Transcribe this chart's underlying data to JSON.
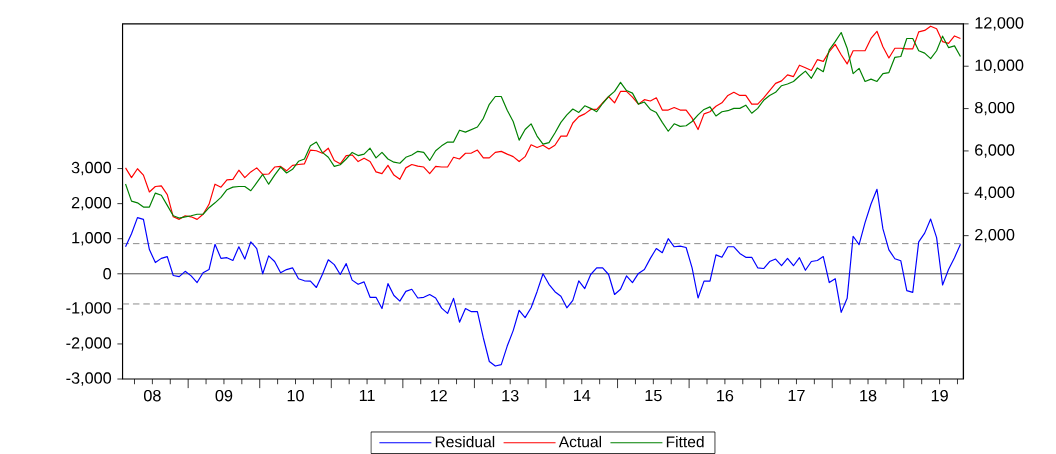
{
  "chart_data": {
    "type": "line",
    "x": [
      "2008-02",
      "2008-03",
      "2008-04",
      "2008-05",
      "2008-06",
      "2008-07",
      "2008-08",
      "2008-09",
      "2008-10",
      "2008-11",
      "2008-12",
      "2009-01",
      "2009-02",
      "2009-03",
      "2009-04",
      "2009-05",
      "2009-06",
      "2009-07",
      "2009-08",
      "2009-09",
      "2009-10",
      "2009-11",
      "2009-12",
      "2010-01",
      "2010-02",
      "2010-03",
      "2010-04",
      "2010-05",
      "2010-06",
      "2010-07",
      "2010-08",
      "2010-09",
      "2010-10",
      "2010-11",
      "2010-12",
      "2011-01",
      "2011-02",
      "2011-03",
      "2011-04",
      "2011-05",
      "2011-06",
      "2011-07",
      "2011-08",
      "2011-09",
      "2011-10",
      "2011-11",
      "2011-12",
      "2012-01",
      "2012-02",
      "2012-03",
      "2012-04",
      "2012-05",
      "2012-06",
      "2012-07",
      "2012-08",
      "2012-09",
      "2012-10",
      "2012-11",
      "2012-12",
      "2013-01",
      "2013-02",
      "2013-03",
      "2013-04",
      "2013-05",
      "2013-06",
      "2013-07",
      "2013-08",
      "2013-09",
      "2013-10",
      "2013-11",
      "2013-12",
      "2014-01",
      "2014-02",
      "2014-03",
      "2014-04",
      "2014-05",
      "2014-06",
      "2014-07",
      "2014-08",
      "2014-09",
      "2014-10",
      "2014-11",
      "2014-12",
      "2015-01",
      "2015-02",
      "2015-03",
      "2015-04",
      "2015-05",
      "2015-06",
      "2015-07",
      "2015-08",
      "2015-09",
      "2015-10",
      "2015-11",
      "2015-12",
      "2016-01",
      "2016-02",
      "2016-03",
      "2016-04",
      "2016-05",
      "2016-06",
      "2016-07",
      "2016-08",
      "2016-09",
      "2016-10",
      "2016-11",
      "2016-12",
      "2017-01",
      "2017-02",
      "2017-03",
      "2017-04",
      "2017-05",
      "2017-06",
      "2017-07",
      "2017-08",
      "2017-09",
      "2017-10",
      "2017-11",
      "2017-12",
      "2018-01",
      "2018-02",
      "2018-03",
      "2018-04",
      "2018-05",
      "2018-06",
      "2018-07",
      "2018-08",
      "2018-09",
      "2018-10",
      "2018-11",
      "2018-12",
      "2019-01",
      "2019-02",
      "2019-03",
      "2019-04",
      "2019-05",
      "2019-06",
      "2019-07",
      "2019-08",
      "2019-09",
      "2019-10"
    ],
    "series": [
      {
        "name": "Residual",
        "color": "#0000ff",
        "values": [
          770,
          1140,
          1600,
          1550,
          690,
          320,
          440,
          490,
          -50,
          -80,
          70,
          -60,
          -250,
          30,
          120,
          840,
          440,
          460,
          380,
          770,
          420,
          910,
          720,
          0,
          510,
          350,
          30,
          120,
          170,
          -140,
          -200,
          -210,
          -390,
          -20,
          400,
          260,
          -20,
          290,
          -180,
          -300,
          -230,
          -670,
          -670,
          -990,
          -280,
          -620,
          -780,
          -500,
          -440,
          -690,
          -670,
          -590,
          -690,
          -980,
          -1130,
          -700,
          -1380,
          -990,
          -1080,
          -1080,
          -1830,
          -2500,
          -2630,
          -2590,
          -2060,
          -1620,
          -1040,
          -1250,
          -970,
          -510,
          0,
          -300,
          -510,
          -640,
          -970,
          -760,
          -200,
          -420,
          -20,
          170,
          170,
          -20,
          -590,
          -440,
          -60,
          -250,
          10,
          120,
          440,
          720,
          600,
          1000,
          770,
          790,
          750,
          170,
          -690,
          -210,
          -210,
          540,
          470,
          770,
          770,
          580,
          470,
          470,
          170,
          150,
          350,
          420,
          230,
          440,
          230,
          460,
          100,
          350,
          380,
          490,
          -250,
          -140,
          -1100,
          -700,
          1070,
          830,
          1460,
          1990,
          2410,
          1280,
          680,
          430,
          370,
          -480,
          -530,
          910,
          1160,
          1560,
          1030,
          -320,
          120,
          460,
          840
        ]
      },
      {
        "name": "Actual",
        "color": "#ff0000",
        "axis": "y2",
        "values": [
          5200,
          4740,
          5160,
          4860,
          4060,
          4320,
          4350,
          3940,
          2890,
          2770,
          2940,
          2890,
          2770,
          3010,
          3480,
          4430,
          4290,
          4630,
          4660,
          5090,
          4740,
          5010,
          5200,
          4890,
          4910,
          5240,
          5270,
          5060,
          5320,
          5360,
          5390,
          6040,
          6010,
          5890,
          6130,
          5550,
          5390,
          5780,
          5810,
          5500,
          5660,
          5500,
          5010,
          4930,
          5320,
          4860,
          4660,
          5200,
          5360,
          5280,
          5240,
          4930,
          5270,
          5240,
          5240,
          5700,
          5620,
          5890,
          5900,
          6040,
          5670,
          5670,
          5930,
          5980,
          5850,
          5730,
          5500,
          5730,
          6290,
          6160,
          6270,
          6090,
          6270,
          6700,
          6700,
          7320,
          7620,
          7750,
          7960,
          7960,
          8270,
          8570,
          8270,
          8810,
          8810,
          8540,
          8210,
          8420,
          8360,
          8510,
          7930,
          7930,
          8050,
          7930,
          7930,
          7550,
          7010,
          7750,
          7850,
          8110,
          8270,
          8620,
          8770,
          8620,
          8620,
          8210,
          8210,
          8510,
          8850,
          9190,
          9310,
          9590,
          9510,
          10050,
          9930,
          9800,
          10310,
          10230,
          10690,
          11030,
          10540,
          10110,
          10730,
          10730,
          10730,
          11310,
          11650,
          10920,
          10390,
          10850,
          10850,
          10820,
          10820,
          11620,
          11690,
          11890,
          11770,
          11160,
          11080,
          11430,
          11310
        ]
      },
      {
        "name": "Fitted",
        "color": "#008000",
        "axis": "y2",
        "values": [
          4440,
          3630,
          3550,
          3350,
          3350,
          4010,
          3910,
          3430,
          2940,
          2830,
          2890,
          2940,
          3010,
          3010,
          3320,
          3550,
          3810,
          4170,
          4290,
          4320,
          4320,
          4120,
          4500,
          4890,
          4430,
          4860,
          5240,
          4960,
          5130,
          5510,
          5620,
          6240,
          6420,
          5930,
          5700,
          5270,
          5350,
          5620,
          5930,
          5780,
          5850,
          6130,
          5670,
          5930,
          5620,
          5470,
          5420,
          5700,
          5810,
          5980,
          5930,
          5550,
          6010,
          6240,
          6420,
          6420,
          6980,
          6890,
          7010,
          7130,
          7540,
          8200,
          8570,
          8570,
          7920,
          7390,
          6510,
          7010,
          7280,
          6700,
          6320,
          6390,
          6850,
          7350,
          7700,
          7980,
          7820,
          8130,
          8010,
          7850,
          8240,
          8570,
          8810,
          9240,
          8850,
          8730,
          8210,
          8310,
          7960,
          7810,
          7350,
          6930,
          7280,
          7160,
          7190,
          7390,
          7700,
          7960,
          8080,
          7650,
          7850,
          7900,
          8010,
          8010,
          8160,
          7780,
          8010,
          8390,
          8620,
          8770,
          9080,
          9160,
          9280,
          9540,
          9770,
          9430,
          9920,
          9740,
          10770,
          11160,
          11590,
          10850,
          9650,
          9900,
          9280,
          9390,
          9280,
          9650,
          9700,
          10420,
          10460,
          11310,
          11310,
          10730,
          10620,
          10360,
          10730,
          11420,
          10880,
          10960,
          10460
        ]
      }
    ],
    "xlim": [
      "2008-02-01",
      "2019-11-01"
    ],
    "xticks": [
      {
        "value": "2008-04-01",
        "label": null
      },
      {
        "value": "2008-07-01",
        "label": "08"
      },
      {
        "value": "2008-10-01",
        "label": null
      },
      {
        "value": "2009-01-01",
        "label": null
      },
      {
        "value": "2009-04-01",
        "label": null
      },
      {
        "value": "2009-07-01",
        "label": "09"
      },
      {
        "value": "2009-10-01",
        "label": null
      },
      {
        "value": "2010-01-01",
        "label": null
      },
      {
        "value": "2010-04-01",
        "label": null
      },
      {
        "value": "2010-07-01",
        "label": "10"
      },
      {
        "value": "2010-10-01",
        "label": null
      },
      {
        "value": "2011-01-01",
        "label": null
      },
      {
        "value": "2011-04-01",
        "label": null
      },
      {
        "value": "2011-07-01",
        "label": "11"
      },
      {
        "value": "2011-10-01",
        "label": null
      },
      {
        "value": "2012-01-01",
        "label": null
      },
      {
        "value": "2012-04-01",
        "label": null
      },
      {
        "value": "2012-07-01",
        "label": "12"
      },
      {
        "value": "2012-10-01",
        "label": null
      },
      {
        "value": "2013-01-01",
        "label": null
      },
      {
        "value": "2013-04-01",
        "label": null
      },
      {
        "value": "2013-07-01",
        "label": "13"
      },
      {
        "value": "2013-10-01",
        "label": null
      },
      {
        "value": "2014-01-01",
        "label": null
      },
      {
        "value": "2014-04-01",
        "label": null
      },
      {
        "value": "2014-07-01",
        "label": "14"
      },
      {
        "value": "2014-10-01",
        "label": null
      },
      {
        "value": "2015-01-01",
        "label": null
      },
      {
        "value": "2015-04-01",
        "label": null
      },
      {
        "value": "2015-07-01",
        "label": "15"
      },
      {
        "value": "2015-10-01",
        "label": null
      },
      {
        "value": "2016-01-01",
        "label": null
      },
      {
        "value": "2016-04-01",
        "label": null
      },
      {
        "value": "2016-07-01",
        "label": "16"
      },
      {
        "value": "2016-10-01",
        "label": null
      },
      {
        "value": "2017-01-01",
        "label": null
      },
      {
        "value": "2017-04-01",
        "label": null
      },
      {
        "value": "2017-07-01",
        "label": "17"
      },
      {
        "value": "2017-10-01",
        "label": null
      },
      {
        "value": "2018-01-01",
        "label": null
      },
      {
        "value": "2018-04-01",
        "label": null
      },
      {
        "value": "2018-07-01",
        "label": "18"
      },
      {
        "value": "2018-10-01",
        "label": null
      },
      {
        "value": "2019-01-01",
        "label": null
      },
      {
        "value": "2019-04-01",
        "label": null
      },
      {
        "value": "2019-07-01",
        "label": "19"
      },
      {
        "value": "2019-10-01",
        "label": null
      }
    ],
    "ylim": [
      -3000,
      7125
    ],
    "yticks": [
      {
        "value": -3000,
        "label": "-3,000"
      },
      {
        "value": -2000,
        "label": "-2,000"
      },
      {
        "value": -1000,
        "label": "-1,000"
      },
      0,
      {
        "value": 1000,
        "label": "1,000"
      },
      {
        "value": 2000,
        "label": "2,000"
      },
      {
        "value": 3000,
        "label": "3,000"
      }
    ],
    "y2lim": [
      -4770,
      12000
    ],
    "y2ticks": [
      {
        "value": 2000,
        "label": "2,000"
      },
      {
        "value": 4000,
        "label": "4,000"
      },
      {
        "value": 6000,
        "label": "6,000"
      },
      {
        "value": 8000,
        "label": "8,000"
      },
      {
        "value": 10000,
        "label": "10,000"
      },
      {
        "value": 12000,
        "label": "12,000"
      }
    ],
    "ref_lines": [
      {
        "axis": "y",
        "value": 860,
        "color": "#808080",
        "line_style": "dashed"
      },
      {
        "axis": "y",
        "value": 0,
        "color": "#404040",
        "line_style": "solid"
      },
      {
        "axis": "y",
        "value": -860,
        "color": "#808080",
        "line_style": "dashed"
      }
    ],
    "legend": "bottom"
  }
}
